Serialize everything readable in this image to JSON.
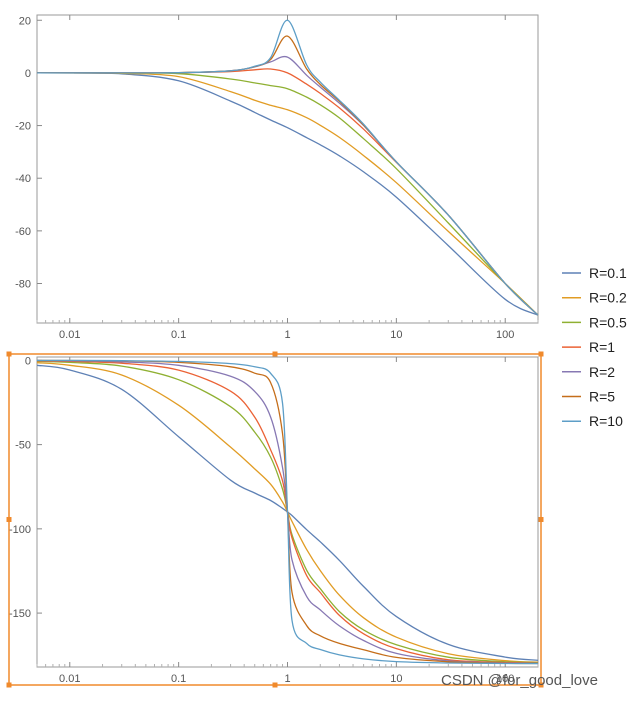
{
  "watermark": "CSDN @for_good_love",
  "legend": {
    "items": [
      {
        "label": "R=0.1",
        "color": "#5e81b5",
        "r": 0.1
      },
      {
        "label": "R=0.2",
        "color": "#e19c24",
        "r": 0.2
      },
      {
        "label": "R=0.5",
        "color": "#8fb032",
        "r": 0.5
      },
      {
        "label": "R=1",
        "color": "#eb6235",
        "r": 1
      },
      {
        "label": "R=2",
        "color": "#8778b3",
        "r": 2
      },
      {
        "label": "R=5",
        "color": "#c56e1a",
        "r": 5
      },
      {
        "label": "R=10",
        "color": "#5d9ec7",
        "r": 10
      }
    ]
  },
  "selection_frame_color": "#f08a2c",
  "chart_data": [
    {
      "type": "line",
      "title": "",
      "xlabel": "",
      "ylabel": "",
      "x_scale": "log",
      "xlim": [
        0.005,
        200
      ],
      "ylim": [
        -95,
        22
      ],
      "x_tick_labels": [
        "0.01",
        "0.1",
        "1",
        "10",
        "100"
      ],
      "x_ticks": [
        0.01,
        0.1,
        1,
        10,
        100
      ],
      "y_tick_labels": [
        "20",
        "0",
        "-20",
        "-40",
        "-60",
        "-80"
      ],
      "y_ticks": [
        20,
        0,
        -20,
        -40,
        -60,
        -80
      ],
      "x": [
        0.005,
        0.01,
        0.03,
        0.1,
        0.3,
        0.5,
        0.7,
        1,
        1.5,
        2,
        3,
        5,
        10,
        30,
        100,
        200
      ],
      "series": [
        {
          "name": "R=0.1",
          "values": [
            0,
            -0.04,
            -0.35,
            -3.0,
            -10.7,
            -15.0,
            -17.9,
            -20.8,
            -24.6,
            -27.3,
            -31.5,
            -37.6,
            -47.2,
            -65.6,
            -86.0,
            -92.0
          ]
        },
        {
          "name": "R=0.2",
          "values": [
            0,
            -0.02,
            -0.14,
            -1.4,
            -7.1,
            -10.4,
            -12.3,
            -14.0,
            -17.0,
            -19.9,
            -24.5,
            -31.4,
            -41.7,
            -60.2,
            -80.0,
            -92.0
          ]
        },
        {
          "name": "R=0.5",
          "values": [
            0,
            0,
            -0.03,
            -0.3,
            -2.3,
            -3.8,
            -4.8,
            -6.0,
            -9.2,
            -12.1,
            -17.1,
            -25.0,
            -36.4,
            -57.0,
            -80.0,
            -92.0
          ]
        },
        {
          "name": "R=1",
          "values": [
            0,
            0,
            0,
            0.1,
            0.5,
            1.2,
            1.5,
            0,
            -4.3,
            -7.8,
            -13.3,
            -21.4,
            -34.0,
            -54.0,
            -80.0,
            -92.0
          ]
        },
        {
          "name": "R=2",
          "values": [
            0,
            0,
            0,
            0.1,
            0.8,
            2.3,
            4.2,
            6.0,
            -0.9,
            -5.4,
            -11.5,
            -20.0,
            -33.8,
            -54.0,
            -80.0,
            -92.0
          ]
        },
        {
          "name": "R=5",
          "values": [
            0,
            0,
            0,
            0.1,
            0.8,
            2.4,
            5.1,
            14.0,
            1.5,
            -4.4,
            -10.8,
            -19.8,
            -33.8,
            -54.0,
            -80.0,
            -92.0
          ]
        },
        {
          "name": "R=10",
          "values": [
            0,
            0,
            0,
            0.1,
            0.8,
            2.5,
            5.8,
            20.0,
            3.0,
            -3.5,
            -10.4,
            -19.5,
            -33.8,
            -54.0,
            -80.0,
            -92.0
          ]
        }
      ]
    },
    {
      "type": "line",
      "title": "",
      "xlabel": "",
      "ylabel": "",
      "x_scale": "log",
      "xlim": [
        0.005,
        200
      ],
      "ylim": [
        -182,
        2
      ],
      "x_tick_labels": [
        "0.01",
        "0.1",
        "1",
        "10",
        "100"
      ],
      "x_ticks": [
        0.01,
        0.1,
        1,
        10,
        100
      ],
      "y_tick_labels": [
        "0",
        "-50",
        "-100",
        "-150"
      ],
      "y_ticks": [
        0,
        -50,
        -100,
        -150
      ],
      "x": [
        0.005,
        0.01,
        0.03,
        0.1,
        0.3,
        0.5,
        0.7,
        0.9,
        1,
        1.1,
        1.5,
        2,
        3,
        5,
        10,
        30,
        100,
        200
      ],
      "series": [
        {
          "name": "R=0.1",
          "values": [
            -2.9,
            -5.7,
            -17.2,
            -45.3,
            -71.1,
            -78.7,
            -83.2,
            -87.8,
            -90.0,
            -92.1,
            -100.5,
            -107.7,
            -118.7,
            -134.2,
            -152.1,
            -168.6,
            -176.1,
            -178.0
          ]
        },
        {
          "name": "R=0.2",
          "values": [
            -1.4,
            -2.9,
            -8.7,
            -26.6,
            -51.5,
            -64.4,
            -73.5,
            -84.0,
            -90.0,
            -95.6,
            -112.3,
            -124.8,
            -139.4,
            -152.8,
            -164.3,
            -174.1,
            -178.2,
            -179.1
          ]
        },
        {
          "name": "R=0.5",
          "values": [
            -0.6,
            -1.2,
            -3.4,
            -11.5,
            -27.5,
            -42.6,
            -57.4,
            -76.4,
            -90.0,
            -103.5,
            -124.6,
            -135.5,
            -149.1,
            -160.0,
            -168.8,
            -176.2,
            -178.9,
            -179.4
          ]
        },
        {
          "name": "R=1",
          "values": [
            -0.3,
            -0.6,
            -1.7,
            -5.8,
            -18.3,
            -33.7,
            -53.1,
            -71.4,
            -90.0,
            -105.4,
            -127.8,
            -137.8,
            -151.4,
            -162.3,
            -171.1,
            -177.7,
            -179.3,
            -179.7
          ]
        },
        {
          "name": "R=2",
          "values": [
            -0.1,
            -0.3,
            -0.9,
            -2.9,
            -9.4,
            -18.4,
            -33.6,
            -63.5,
            -90.0,
            -118.4,
            -140.2,
            -148.1,
            -157.6,
            -166.3,
            -173.9,
            -178.4,
            -179.6,
            -179.8
          ]
        },
        {
          "name": "R=5",
          "values": [
            0,
            -0.1,
            -0.3,
            -1.2,
            -3.8,
            -7.6,
            -13.2,
            -43.3,
            -90.0,
            -137.7,
            -157.4,
            -163.5,
            -168.0,
            -171.8,
            -176.3,
            -178.9,
            -179.8,
            -179.9
          ]
        },
        {
          "name": "R=10",
          "values": [
            0,
            0,
            -0.2,
            -0.6,
            -1.9,
            -3.8,
            -7.7,
            -25.3,
            -90.0,
            -154.3,
            -168.0,
            -171.6,
            -174.8,
            -177.2,
            -178.8,
            -179.6,
            -179.9,
            -180.0
          ]
        }
      ]
    }
  ]
}
